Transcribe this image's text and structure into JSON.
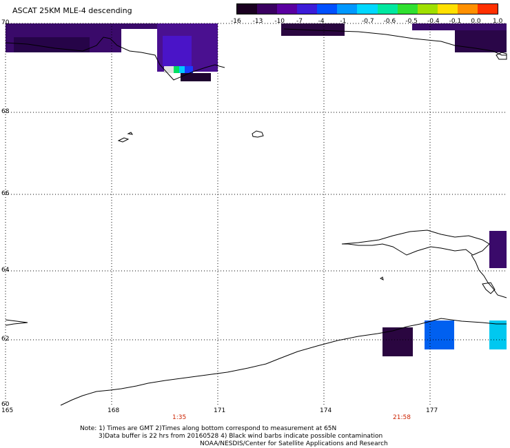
{
  "title": "ASCAT 25KM MLE-4 descending",
  "colorbar": {
    "labels": [
      "-16",
      "-13",
      "-10",
      "-7",
      "-4",
      "-1",
      "-0.7",
      "-0.6",
      "-0.5",
      "-0.4",
      "-0.1",
      "0.0",
      "1.0"
    ],
    "colors": [
      "#1a0020",
      "#3a0060",
      "#5a00a0",
      "#3c1cd8",
      "#0050ff",
      "#0098ff",
      "#00d8ff",
      "#00e8a0",
      "#30e030",
      "#a0e000",
      "#ffe000",
      "#ff9000",
      "#ff3000"
    ]
  },
  "lat_labels": [
    "70",
    "68",
    "66",
    "64",
    "62",
    "60"
  ],
  "lon_labels": [
    "165",
    "168",
    "171",
    "174",
    "177"
  ],
  "times": [
    "1:35",
    "21:58"
  ],
  "notes": [
    "Note: 1) Times are GMT 2)Times along bottom correspond to measurement at 65N",
    "3)Data buffer is 22 hrs from 20160528 4) Black wind barbs indicate possible contamination",
    "NOAA/NESDIS/Center for Satellite Applications and Research"
  ]
}
